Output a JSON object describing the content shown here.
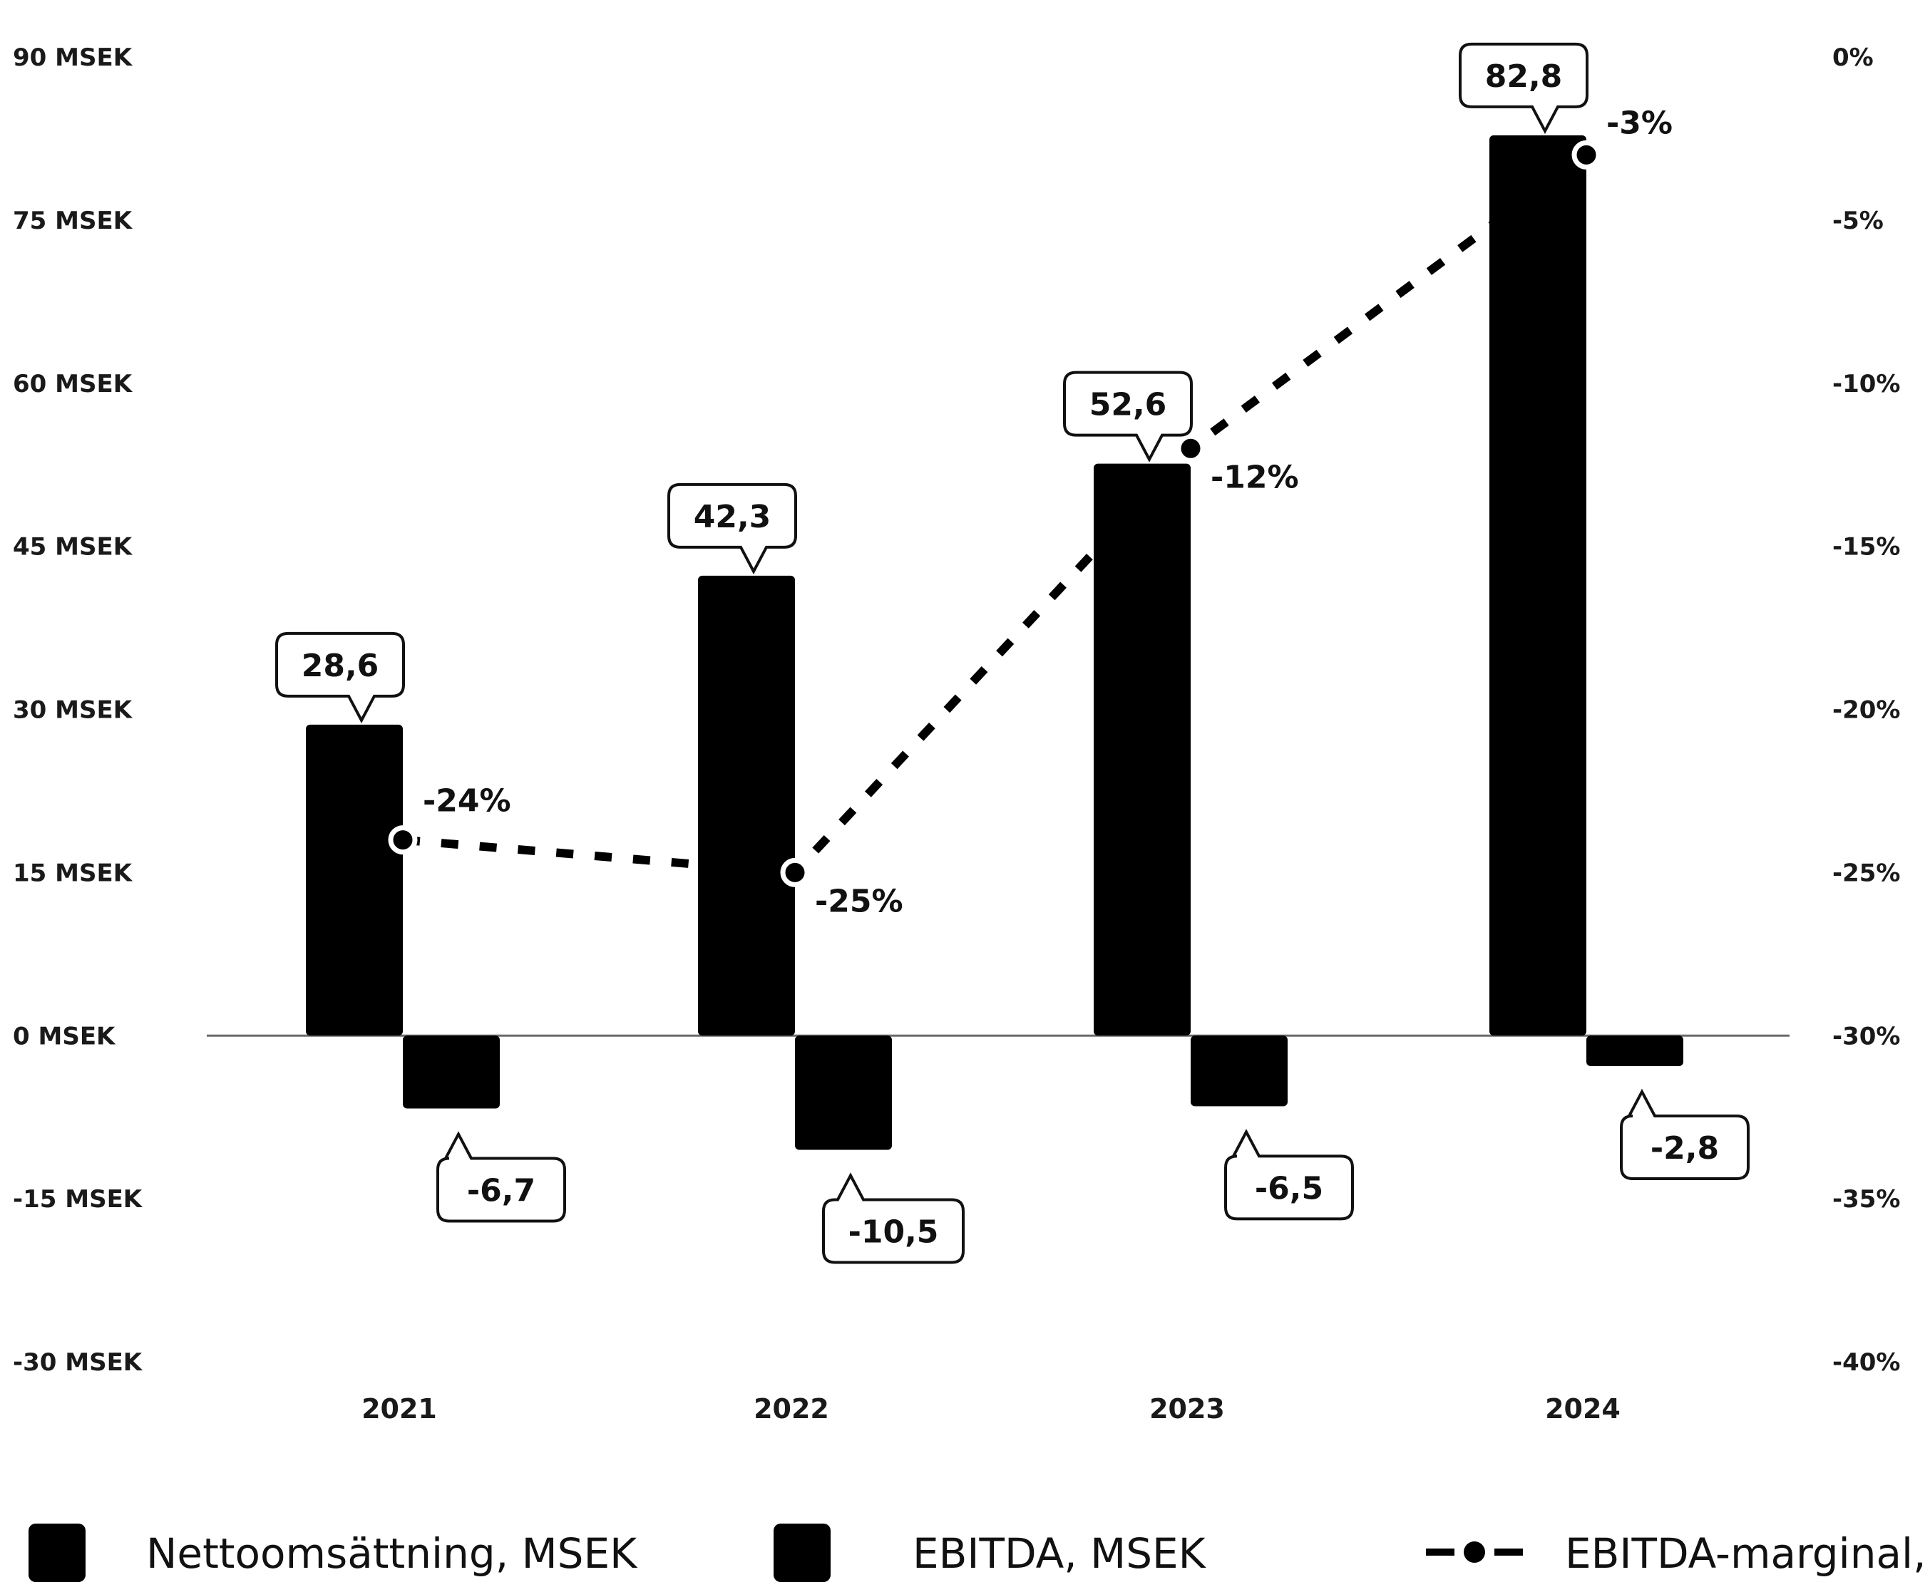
{
  "chart_data": {
    "type": "bar",
    "categories": [
      "2021",
      "2022",
      "2023",
      "2024"
    ],
    "series": [
      {
        "name": "Nettoomsättning, MSEK",
        "values": [
          28.6,
          42.3,
          52.6,
          82.8
        ],
        "labels": [
          "28,6",
          "42,3",
          "52,6",
          "82,8"
        ],
        "color": "#000000",
        "axis": "left"
      },
      {
        "name": "EBITDA, MSEK",
        "values": [
          -6.7,
          -10.5,
          -6.5,
          -2.8
        ],
        "labels": [
          "-6,7",
          "-10,5",
          "-6,5",
          "-2,8"
        ],
        "color": "#000000",
        "axis": "left"
      },
      {
        "name": "EBITDA-marginal, %",
        "type": "line",
        "style": "dashed",
        "values": [
          -24,
          -25,
          -12,
          -3
        ],
        "labels": [
          "-24%",
          "-25%",
          "-12%",
          "-3%"
        ],
        "color": "#000000",
        "axis": "right"
      }
    ],
    "left_axis": {
      "ylim": [
        -30,
        90
      ],
      "ticks": [
        90,
        75,
        60,
        45,
        30,
        15,
        0,
        -15,
        -30
      ],
      "tick_labels": [
        "90 MSEK",
        "75 MSEK",
        "60 MSEK",
        "45 MSEK",
        "30 MSEK",
        "15 MSEK",
        "0 MSEK",
        "-15 MSEK",
        "-30 MSEK"
      ]
    },
    "right_axis": {
      "ylim": [
        -40,
        0
      ],
      "ticks": [
        0,
        -5,
        -10,
        -15,
        -20,
        -25,
        -30,
        -35,
        -40
      ],
      "tick_labels": [
        "0%",
        "-5%",
        "-10%",
        "-15%",
        "-20%",
        "-25%",
        "-30%",
        "-35%",
        "-40%"
      ]
    },
    "grid": false,
    "legend_position": "bottom"
  }
}
